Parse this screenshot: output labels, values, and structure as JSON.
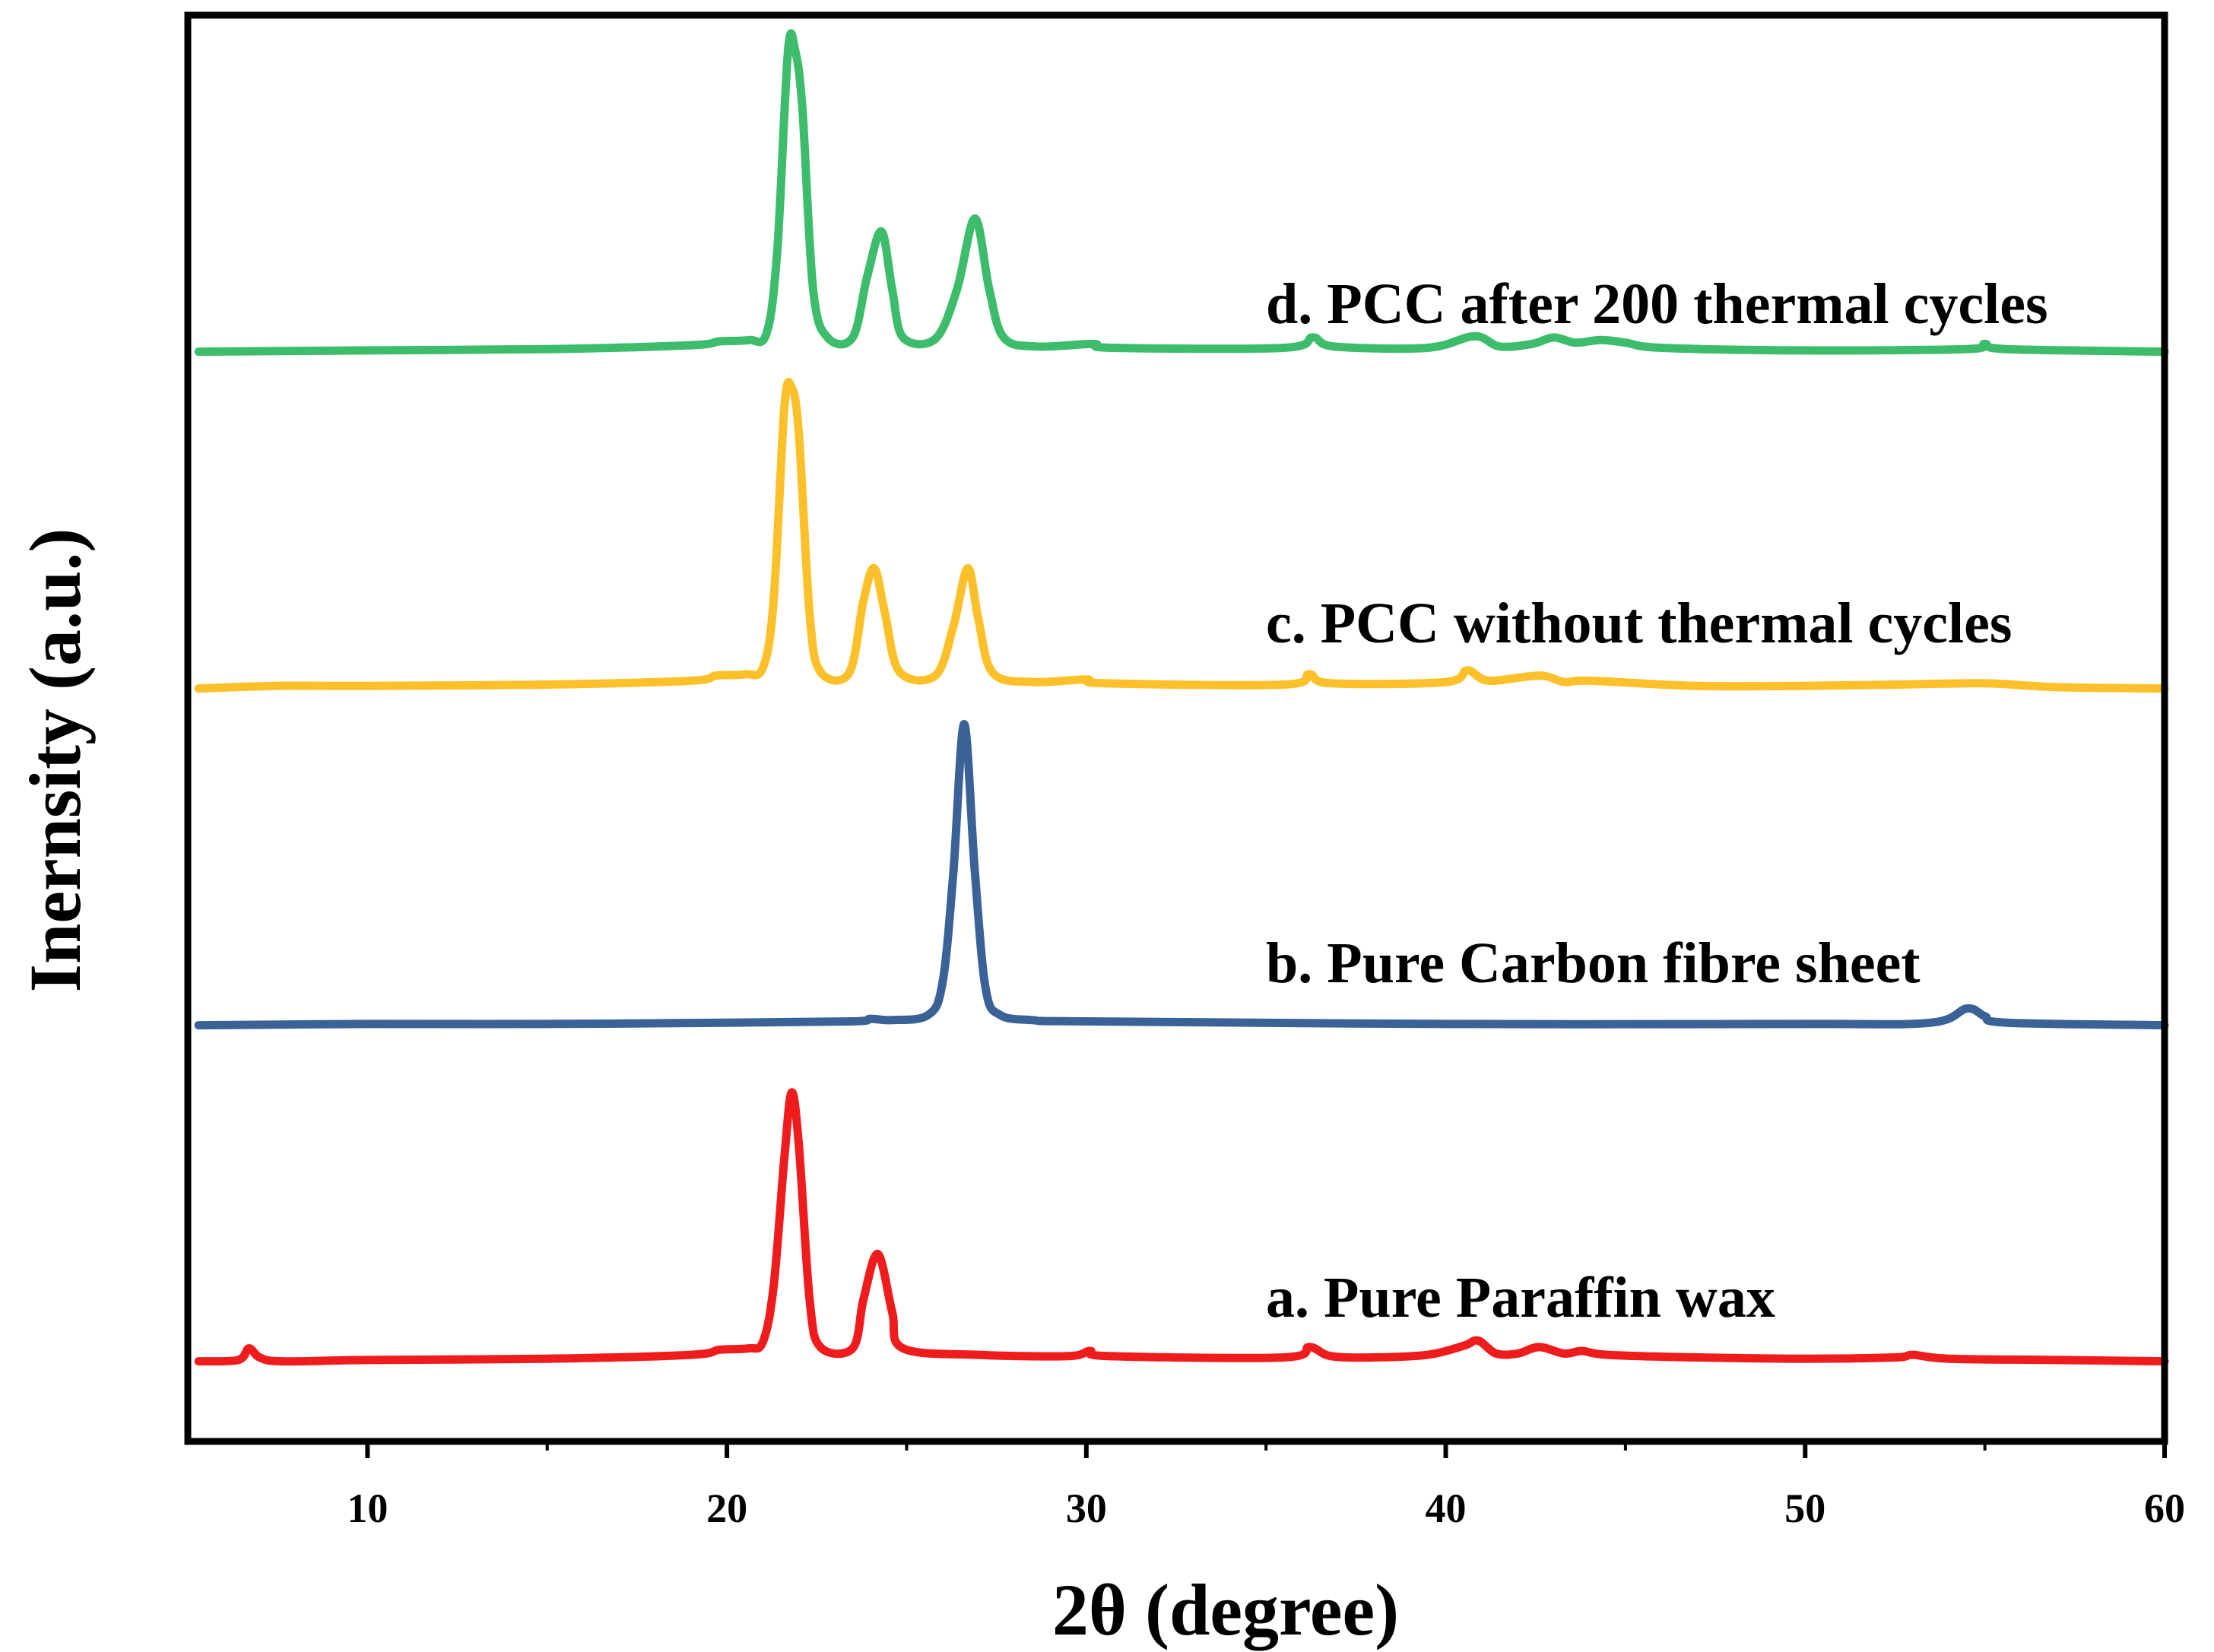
{
  "chart_data": {
    "type": "line",
    "title": "",
    "xlabel": "2θ (degree)",
    "ylabel": "Inernsity (a.u.)",
    "xlim": [
      5,
      60
    ],
    "xticks": [
      10,
      20,
      30,
      40,
      50,
      60
    ],
    "xtick_labels": [
      "10",
      "20",
      "30",
      "40",
      "50",
      "60"
    ],
    "yticks_shown": false,
    "grid": false,
    "legend": "inline labels, stacked right of each trace",
    "series": [
      {
        "name": "a. Pure Paraffin wax",
        "color": "#ee1c1c",
        "offset": 0,
        "points": [
          [
            5.3,
            0.02
          ],
          [
            6.4,
            0.03
          ],
          [
            6.7,
            0.12
          ],
          [
            7.0,
            0.05
          ],
          [
            7.6,
            0.02
          ],
          [
            10,
            0.03
          ],
          [
            15,
            0.04
          ],
          [
            19,
            0.07
          ],
          [
            19.8,
            0.11
          ],
          [
            20.6,
            0.12
          ],
          [
            21.0,
            0.17
          ],
          [
            21.3,
            0.6
          ],
          [
            21.6,
            1.6
          ],
          [
            21.8,
            2.1
          ],
          [
            22.0,
            1.7
          ],
          [
            22.3,
            0.5
          ],
          [
            22.6,
            0.13
          ],
          [
            23.5,
            0.12
          ],
          [
            23.8,
            0.5
          ],
          [
            24.2,
            0.85
          ],
          [
            24.6,
            0.4
          ],
          [
            24.9,
            0.12
          ],
          [
            27,
            0.07
          ],
          [
            29.5,
            0.06
          ],
          [
            30.1,
            0.1
          ],
          [
            30.6,
            0.06
          ],
          [
            35.5,
            0.05
          ],
          [
            36.2,
            0.13
          ],
          [
            36.8,
            0.06
          ],
          [
            38,
            0.05
          ],
          [
            39.5,
            0.07
          ],
          [
            40.5,
            0.14
          ],
          [
            40.9,
            0.18
          ],
          [
            41.4,
            0.08
          ],
          [
            42.0,
            0.08
          ],
          [
            42.6,
            0.13
          ],
          [
            43.3,
            0.08
          ],
          [
            43.8,
            0.1
          ],
          [
            44.5,
            0.07
          ],
          [
            47,
            0.05
          ],
          [
            50,
            0.04
          ],
          [
            52.5,
            0.05
          ],
          [
            53,
            0.07
          ],
          [
            54,
            0.04
          ],
          [
            57,
            0.03
          ],
          [
            60,
            0.02
          ]
        ]
      },
      {
        "name": "b. Pure Carbon fibre sheet",
        "color": "#3b6296",
        "offset": 1,
        "points": [
          [
            5.3,
            0.02
          ],
          [
            10,
            0.03
          ],
          [
            15,
            0.03
          ],
          [
            20,
            0.04
          ],
          [
            23.5,
            0.05
          ],
          [
            24.0,
            0.07
          ],
          [
            24.6,
            0.06
          ],
          [
            25.6,
            0.1
          ],
          [
            26.0,
            0.35
          ],
          [
            26.3,
            1.2
          ],
          [
            26.6,
            2.35
          ],
          [
            26.9,
            1.2
          ],
          [
            27.2,
            0.3
          ],
          [
            27.6,
            0.1
          ],
          [
            28.5,
            0.06
          ],
          [
            30,
            0.05
          ],
          [
            40,
            0.03
          ],
          [
            50,
            0.03
          ],
          [
            53.5,
            0.04
          ],
          [
            54.5,
            0.15
          ],
          [
            55.0,
            0.09
          ],
          [
            55.6,
            0.04
          ],
          [
            60,
            0.02
          ]
        ]
      },
      {
        "name": "c. PCC without thermal cycles",
        "color": "#fcc02a",
        "offset": 2,
        "points": [
          [
            5.3,
            0.02
          ],
          [
            7.5,
            0.04
          ],
          [
            10,
            0.04
          ],
          [
            15,
            0.05
          ],
          [
            19,
            0.08
          ],
          [
            19.7,
            0.12
          ],
          [
            20.5,
            0.13
          ],
          [
            21.0,
            0.18
          ],
          [
            21.3,
            0.7
          ],
          [
            21.6,
            2.2
          ],
          [
            21.8,
            2.35
          ],
          [
            22.0,
            2.0
          ],
          [
            22.3,
            0.6
          ],
          [
            22.6,
            0.15
          ],
          [
            23.4,
            0.14
          ],
          [
            23.8,
            0.7
          ],
          [
            24.1,
            0.95
          ],
          [
            24.4,
            0.6
          ],
          [
            24.8,
            0.15
          ],
          [
            25.8,
            0.12
          ],
          [
            26.3,
            0.5
          ],
          [
            26.7,
            0.95
          ],
          [
            27.0,
            0.55
          ],
          [
            27.4,
            0.14
          ],
          [
            28.5,
            0.07
          ],
          [
            30,
            0.09
          ],
          [
            30.5,
            0.06
          ],
          [
            35.5,
            0.05
          ],
          [
            36.2,
            0.13
          ],
          [
            36.8,
            0.06
          ],
          [
            40,
            0.07
          ],
          [
            40.6,
            0.16
          ],
          [
            41.2,
            0.08
          ],
          [
            42.6,
            0.12
          ],
          [
            43.3,
            0.07
          ],
          [
            44,
            0.08
          ],
          [
            47,
            0.04
          ],
          [
            50,
            0.04
          ],
          [
            52.5,
            0.05
          ],
          [
            55,
            0.06
          ],
          [
            57,
            0.03
          ],
          [
            60,
            0.02
          ]
        ]
      },
      {
        "name": "d. PCC after 200 thermal cycles",
        "color": "#3dbd6c",
        "offset": 3,
        "points": [
          [
            5.3,
            0.02
          ],
          [
            10,
            0.03
          ],
          [
            15,
            0.04
          ],
          [
            19,
            0.07
          ],
          [
            19.8,
            0.1
          ],
          [
            20.6,
            0.11
          ],
          [
            21.1,
            0.16
          ],
          [
            21.4,
            0.8
          ],
          [
            21.7,
            2.35
          ],
          [
            21.9,
            2.35
          ],
          [
            22.1,
            1.9
          ],
          [
            22.4,
            0.5
          ],
          [
            22.8,
            0.13
          ],
          [
            23.5,
            0.13
          ],
          [
            23.9,
            0.6
          ],
          [
            24.3,
            0.95
          ],
          [
            24.6,
            0.5
          ],
          [
            24.9,
            0.13
          ],
          [
            25.8,
            0.12
          ],
          [
            26.4,
            0.5
          ],
          [
            26.9,
            1.05
          ],
          [
            27.3,
            0.5
          ],
          [
            27.7,
            0.13
          ],
          [
            28.6,
            0.06
          ],
          [
            30.2,
            0.08
          ],
          [
            30.7,
            0.05
          ],
          [
            35.5,
            0.05
          ],
          [
            36.3,
            0.13
          ],
          [
            36.9,
            0.06
          ],
          [
            39.5,
            0.05
          ],
          [
            40.8,
            0.14
          ],
          [
            41.5,
            0.06
          ],
          [
            42.4,
            0.08
          ],
          [
            43.0,
            0.13
          ],
          [
            43.6,
            0.09
          ],
          [
            44.3,
            0.11
          ],
          [
            45,
            0.09
          ],
          [
            46,
            0.05
          ],
          [
            50,
            0.03
          ],
          [
            54.5,
            0.04
          ],
          [
            55.0,
            0.08
          ],
          [
            55.6,
            0.04
          ],
          [
            60,
            0.02
          ]
        ]
      }
    ]
  }
}
